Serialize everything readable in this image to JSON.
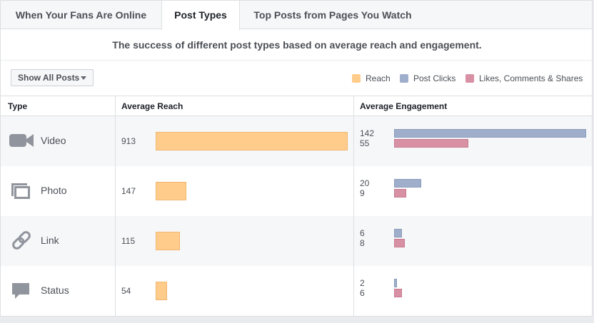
{
  "tabs": [
    {
      "label": "When Your Fans Are Online",
      "active": false
    },
    {
      "label": "Post Types",
      "active": true
    },
    {
      "label": "Top Posts from Pages You Watch",
      "active": false
    }
  ],
  "subtitle": "The success of different post types based on average reach and engagement.",
  "filter": {
    "label": "Show All Posts"
  },
  "legend": [
    {
      "label": "Reach",
      "color": "#ffcc8c"
    },
    {
      "label": "Post Clicks",
      "color": "#9eaecb"
    },
    {
      "label": "Likes, Comments & Shares",
      "color": "#d890a4"
    }
  ],
  "columns": {
    "type": "Type",
    "reach": "Average Reach",
    "engagement": "Average Engagement"
  },
  "rows": [
    {
      "type": "Video",
      "icon": "video-camera-icon",
      "reach": "913",
      "clicks": "142",
      "likes": "55"
    },
    {
      "type": "Photo",
      "icon": "photo-stack-icon",
      "reach": "147",
      "clicks": "20",
      "likes": "9"
    },
    {
      "type": "Link",
      "icon": "chain-link-icon",
      "reach": "115",
      "clicks": "6",
      "likes": "8"
    },
    {
      "type": "Status",
      "icon": "speech-bubble-icon",
      "reach": "54",
      "clicks": "2",
      "likes": "6"
    }
  ]
}
